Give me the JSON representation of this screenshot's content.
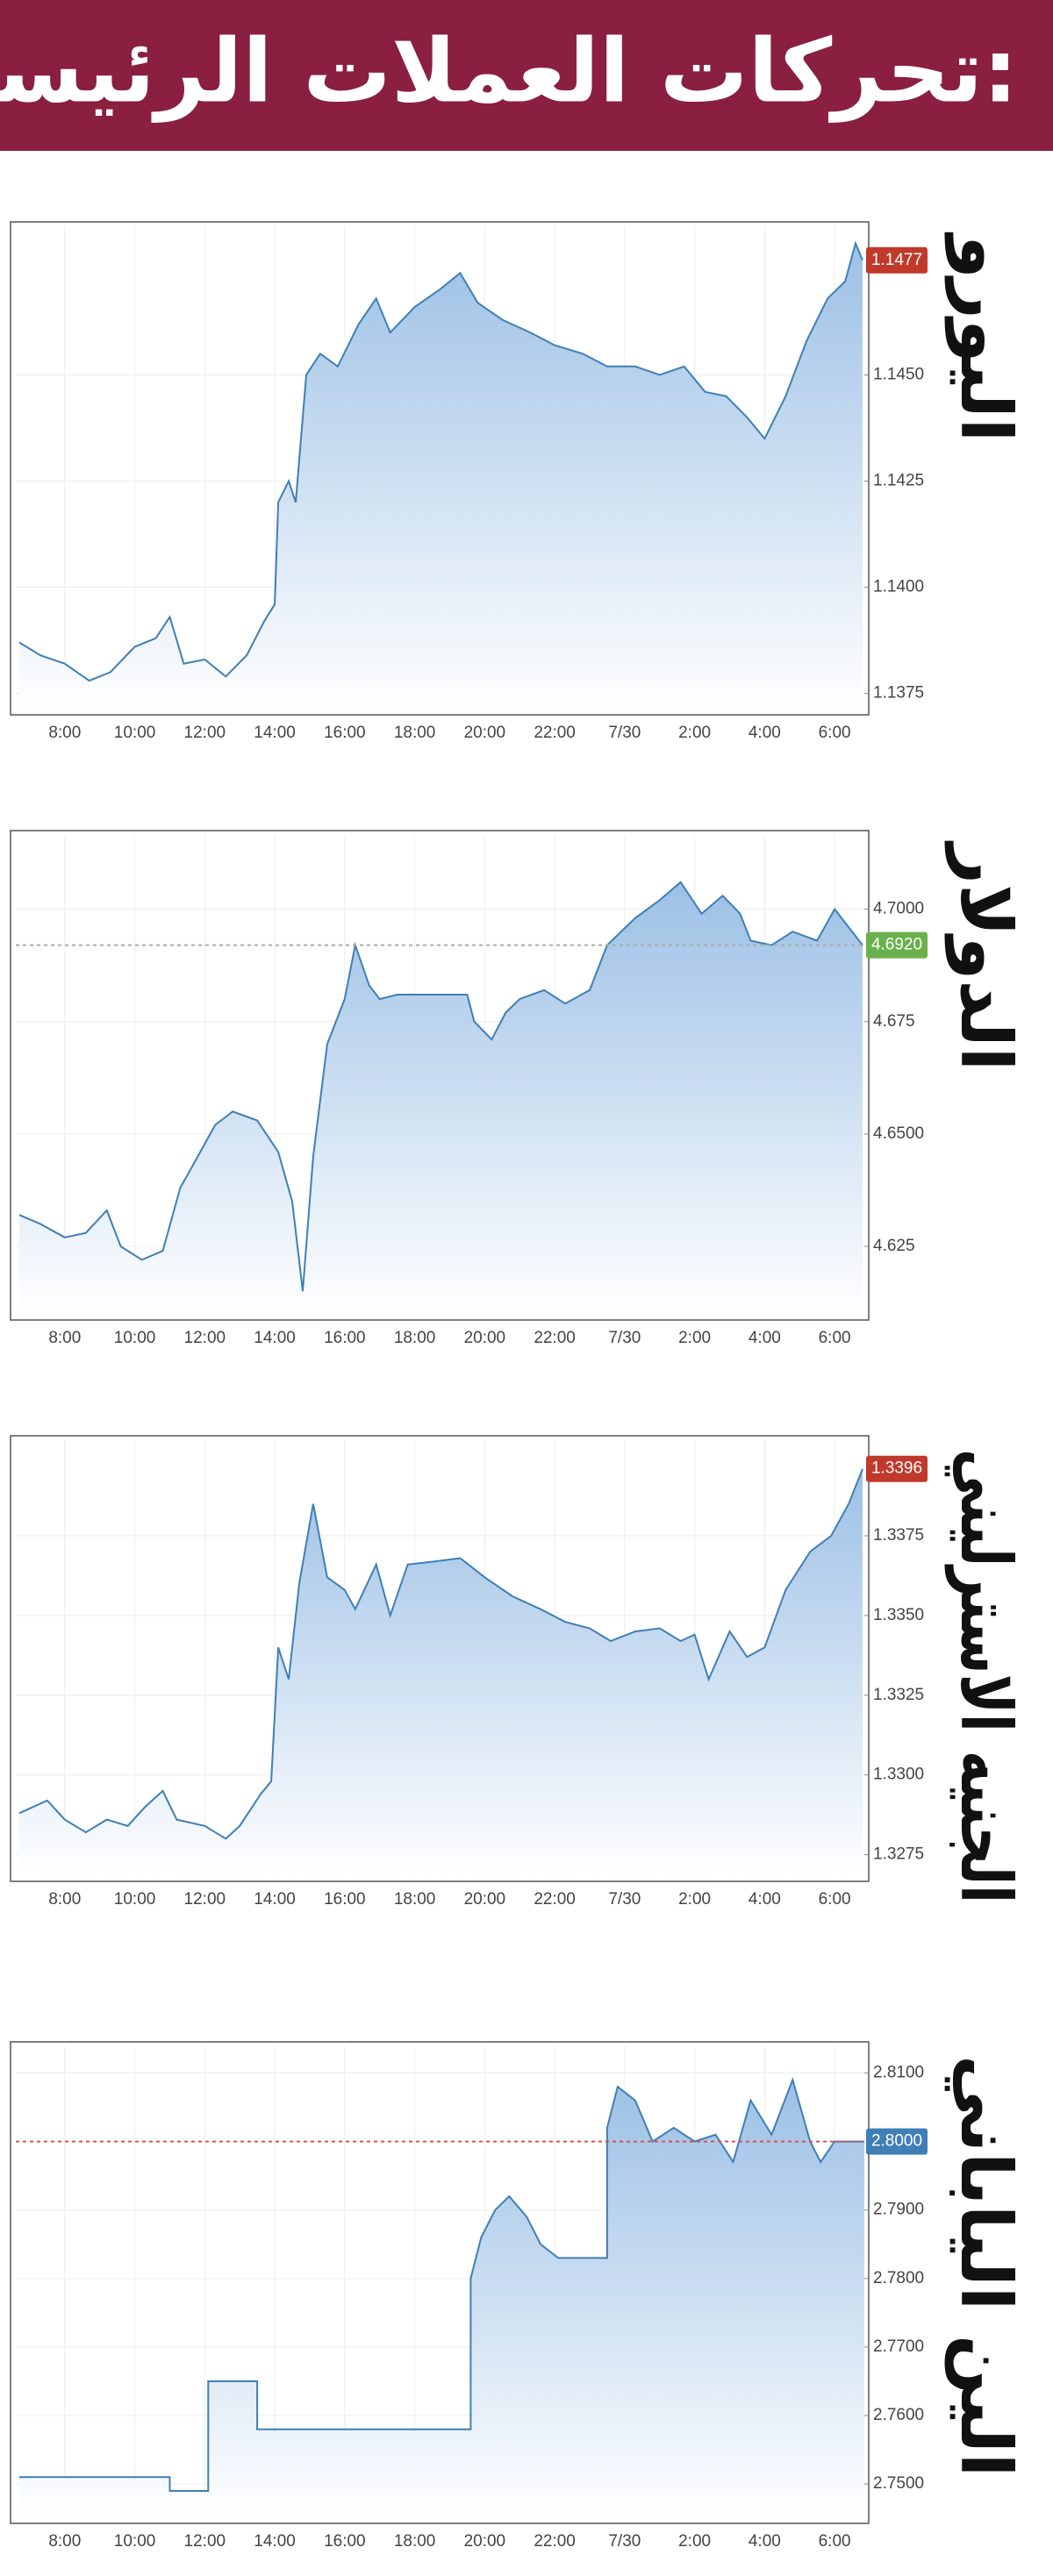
{
  "header": {
    "title": "تحركات العملات الرئيسة:"
  },
  "chart_data": [
    {
      "type": "area",
      "title": "اليورو",
      "color": "#3f7fb5",
      "grid": true,
      "current": 1.1477,
      "current_color": "#c0392b",
      "xlim": [
        6.6,
        30.85
      ],
      "ylim": [
        1.1371,
        1.1485
      ],
      "xticks": [
        {
          "value": 8,
          "label": "8:00"
        },
        {
          "value": 10,
          "label": "10:00"
        },
        {
          "value": 12,
          "label": "12:00"
        },
        {
          "value": 14,
          "label": "14:00"
        },
        {
          "value": 16,
          "label": "16:00"
        },
        {
          "value": 18,
          "label": "18:00"
        },
        {
          "value": 20,
          "label": "20:00"
        },
        {
          "value": 22,
          "label": "22:00"
        },
        {
          "value": 24,
          "label": "7/30"
        },
        {
          "value": 26,
          "label": "2:00"
        },
        {
          "value": 28,
          "label": "4:00"
        },
        {
          "value": 30,
          "label": "6:00"
        }
      ],
      "yticks": [
        1.1375,
        {
          "value": 1.14,
          "label": "1.1400"
        },
        1.1425,
        {
          "value": 1.145,
          "label": "1.1450"
        }
      ],
      "x": [
        6.7,
        7.3,
        8,
        8.7,
        9.3,
        10,
        10.6,
        11,
        11.4,
        12,
        12.6,
        13.2,
        13.7,
        14,
        14.1,
        14.4,
        14.6,
        14.9,
        15.3,
        15.8,
        16.4,
        16.9,
        17.3,
        18,
        18.7,
        19.3,
        19.8,
        20.5,
        21.3,
        22,
        22.8,
        23.5,
        24.3,
        25,
        25.7,
        26.3,
        26.9,
        27.5,
        28,
        28.6,
        29.2,
        29.8,
        30.3,
        30.6,
        30.8
      ],
      "values": [
        1.1387,
        1.1384,
        1.1382,
        1.1378,
        1.138,
        1.1386,
        1.1388,
        1.1393,
        1.1382,
        1.1383,
        1.1379,
        1.1384,
        1.1392,
        1.1396,
        1.142,
        1.1425,
        1.142,
        1.145,
        1.1455,
        1.1452,
        1.1462,
        1.1468,
        1.146,
        1.1466,
        1.147,
        1.1474,
        1.1467,
        1.1463,
        1.146,
        1.1457,
        1.1455,
        1.1452,
        1.1452,
        1.145,
        1.1452,
        1.1446,
        1.1445,
        1.144,
        1.1435,
        1.1445,
        1.1458,
        1.1468,
        1.1472,
        1.1481,
        1.1477
      ]
    },
    {
      "type": "area",
      "title": "الدولار",
      "color": "#3f7fb5",
      "grid": true,
      "current": {
        "value": 4.692,
        "label": "4.6920"
      },
      "current_color": "#6ab04c",
      "current_line": true,
      "current_line_color": "#aaaaaa",
      "xlim": [
        6.6,
        30.85
      ],
      "ylim": [
        4.6096,
        4.7165
      ],
      "xticks": [
        {
          "value": 8,
          "label": "8:00"
        },
        {
          "value": 10,
          "label": "10:00"
        },
        {
          "value": 12,
          "label": "12:00"
        },
        {
          "value": 14,
          "label": "14:00"
        },
        {
          "value": 16,
          "label": "16:00"
        },
        {
          "value": 18,
          "label": "18:00"
        },
        {
          "value": 20,
          "label": "20:00"
        },
        {
          "value": 22,
          "label": "22:00"
        },
        {
          "value": 24,
          "label": "7/30"
        },
        {
          "value": 26,
          "label": "2:00"
        },
        {
          "value": 28,
          "label": "4:00"
        },
        {
          "value": 30,
          "label": "6:00"
        }
      ],
      "yticks": [
        4.625,
        {
          "value": 4.65,
          "label": "4.6500"
        },
        4.675,
        {
          "value": 4.7,
          "label": "4.7000"
        }
      ],
      "x": [
        6.7,
        7.3,
        8,
        8.6,
        9.2,
        9.6,
        10.2,
        10.8,
        11.3,
        11.8,
        12.3,
        12.8,
        13.5,
        14.1,
        14.5,
        14.8,
        15.1,
        15.5,
        16,
        16.3,
        16.7,
        17,
        17.5,
        18.5,
        19.5,
        19.7,
        20.2,
        20.6,
        21,
        21.7,
        22.3,
        23,
        23.5,
        24.3,
        25,
        25.6,
        26.2,
        26.8,
        27.3,
        27.6,
        28.2,
        28.8,
        29.5,
        30,
        30.4,
        30.8
      ],
      "values": [
        4.632,
        4.63,
        4.627,
        4.628,
        4.633,
        4.625,
        4.622,
        4.624,
        4.638,
        4.645,
        4.652,
        4.655,
        4.653,
        4.646,
        4.635,
        4.615,
        4.645,
        4.67,
        4.68,
        4.692,
        4.683,
        4.68,
        4.681,
        4.681,
        4.681,
        4.675,
        4.671,
        4.677,
        4.68,
        4.682,
        4.679,
        4.682,
        4.692,
        4.698,
        4.702,
        4.706,
        4.699,
        4.703,
        4.699,
        4.693,
        4.692,
        4.695,
        4.693,
        4.7,
        4.696,
        4.692
      ]
    },
    {
      "type": "area",
      "title": "الجنيه الاسترليني",
      "color": "#3f7fb5",
      "grid": true,
      "current": 1.3396,
      "current_color": "#c0392b",
      "xlim": [
        6.6,
        30.85
      ],
      "ylim": [
        1.3268,
        1.3405
      ],
      "xticks": [
        {
          "value": 8,
          "label": "8:00"
        },
        {
          "value": 10,
          "label": "10:00"
        },
        {
          "value": 12,
          "label": "12:00"
        },
        {
          "value": 14,
          "label": "14:00"
        },
        {
          "value": 16,
          "label": "16:00"
        },
        {
          "value": 18,
          "label": "18:00"
        },
        {
          "value": 20,
          "label": "20:00"
        },
        {
          "value": 22,
          "label": "22:00"
        },
        {
          "value": 24,
          "label": "7/30"
        },
        {
          "value": 26,
          "label": "2:00"
        },
        {
          "value": 28,
          "label": "4:00"
        },
        {
          "value": 30,
          "label": "6:00"
        }
      ],
      "yticks": [
        1.3275,
        {
          "value": 1.33,
          "label": "1.3300"
        },
        1.3325,
        {
          "value": 1.335,
          "label": "1.3350"
        },
        1.3375
      ],
      "x": [
        6.7,
        7.5,
        8,
        8.6,
        9.2,
        9.8,
        10.3,
        10.8,
        11.2,
        12,
        12.6,
        13,
        13.6,
        13.9,
        14.1,
        14.4,
        14.7,
        15.1,
        15.5,
        16,
        16.3,
        16.9,
        17.3,
        17.8,
        18.6,
        19.3,
        20,
        20.8,
        21.6,
        22.3,
        23,
        23.6,
        24.3,
        25,
        25.6,
        26,
        26.4,
        27,
        27.5,
        28,
        28.6,
        29.3,
        29.9,
        30.4,
        30.8
      ],
      "values": [
        1.3288,
        1.3292,
        1.3286,
        1.3282,
        1.3286,
        1.3284,
        1.329,
        1.3295,
        1.3286,
        1.3284,
        1.328,
        1.3284,
        1.3294,
        1.3298,
        1.334,
        1.333,
        1.336,
        1.3385,
        1.3362,
        1.3358,
        1.3352,
        1.3366,
        1.335,
        1.3366,
        1.3367,
        1.3368,
        1.3362,
        1.3356,
        1.3352,
        1.3348,
        1.3346,
        1.3342,
        1.3345,
        1.3346,
        1.3342,
        1.3344,
        1.333,
        1.3345,
        1.3337,
        1.334,
        1.3358,
        1.337,
        1.3375,
        1.3385,
        1.3396
      ]
    },
    {
      "type": "area",
      "title": "الين الياباني",
      "color": "#3f7fb5",
      "grid": true,
      "current": {
        "value": 2.8,
        "label": "2.8000"
      },
      "current_color": "#3f7fb5",
      "current_line": true,
      "current_line_color": "#d9534f",
      "xlim": [
        6.6,
        30.85
      ],
      "ylim": [
        2.7449,
        2.8139
      ],
      "xticks": [
        {
          "value": 8,
          "label": "8:00"
        },
        {
          "value": 10,
          "label": "10:00"
        },
        {
          "value": 12,
          "label": "12:00"
        },
        {
          "value": 14,
          "label": "14:00"
        },
        {
          "value": 16,
          "label": "16:00"
        },
        {
          "value": 18,
          "label": "18:00"
        },
        {
          "value": 20,
          "label": "20:00"
        },
        {
          "value": 22,
          "label": "22:00"
        },
        {
          "value": 24,
          "label": "7/30"
        },
        {
          "value": 26,
          "label": "2:00"
        },
        {
          "value": 28,
          "label": "4:00"
        },
        {
          "value": 30,
          "label": "6:00"
        }
      ],
      "yticks": [
        {
          "value": 2.75,
          "label": "2.7500"
        },
        {
          "value": 2.76,
          "label": "2.7600"
        },
        {
          "value": 2.77,
          "label": "2.7700"
        },
        {
          "value": 2.78,
          "label": "2.7800"
        },
        {
          "value": 2.79,
          "label": "2.7900"
        },
        {
          "value": 2.81,
          "label": "2.8100"
        }
      ],
      "x": [
        6.7,
        11,
        11,
        12.1,
        12.1,
        13.5,
        13.5,
        19.6,
        19.6,
        19.9,
        20.3,
        20.7,
        21.2,
        21.6,
        22.1,
        23.5,
        23.5,
        23.8,
        24.3,
        24.8,
        25.4,
        26,
        26.6,
        27.1,
        27.6,
        28.2,
        28.8,
        29.3,
        29.6,
        30,
        30.85
      ],
      "values": [
        2.751,
        2.751,
        2.749,
        2.749,
        2.765,
        2.765,
        2.758,
        2.758,
        2.78,
        2.786,
        2.79,
        2.792,
        2.789,
        2.785,
        2.783,
        2.783,
        2.802,
        2.808,
        2.806,
        2.8,
        2.802,
        2.8,
        2.801,
        2.797,
        2.806,
        2.801,
        2.809,
        2.8,
        2.797,
        2.8,
        2.8
      ]
    }
  ]
}
